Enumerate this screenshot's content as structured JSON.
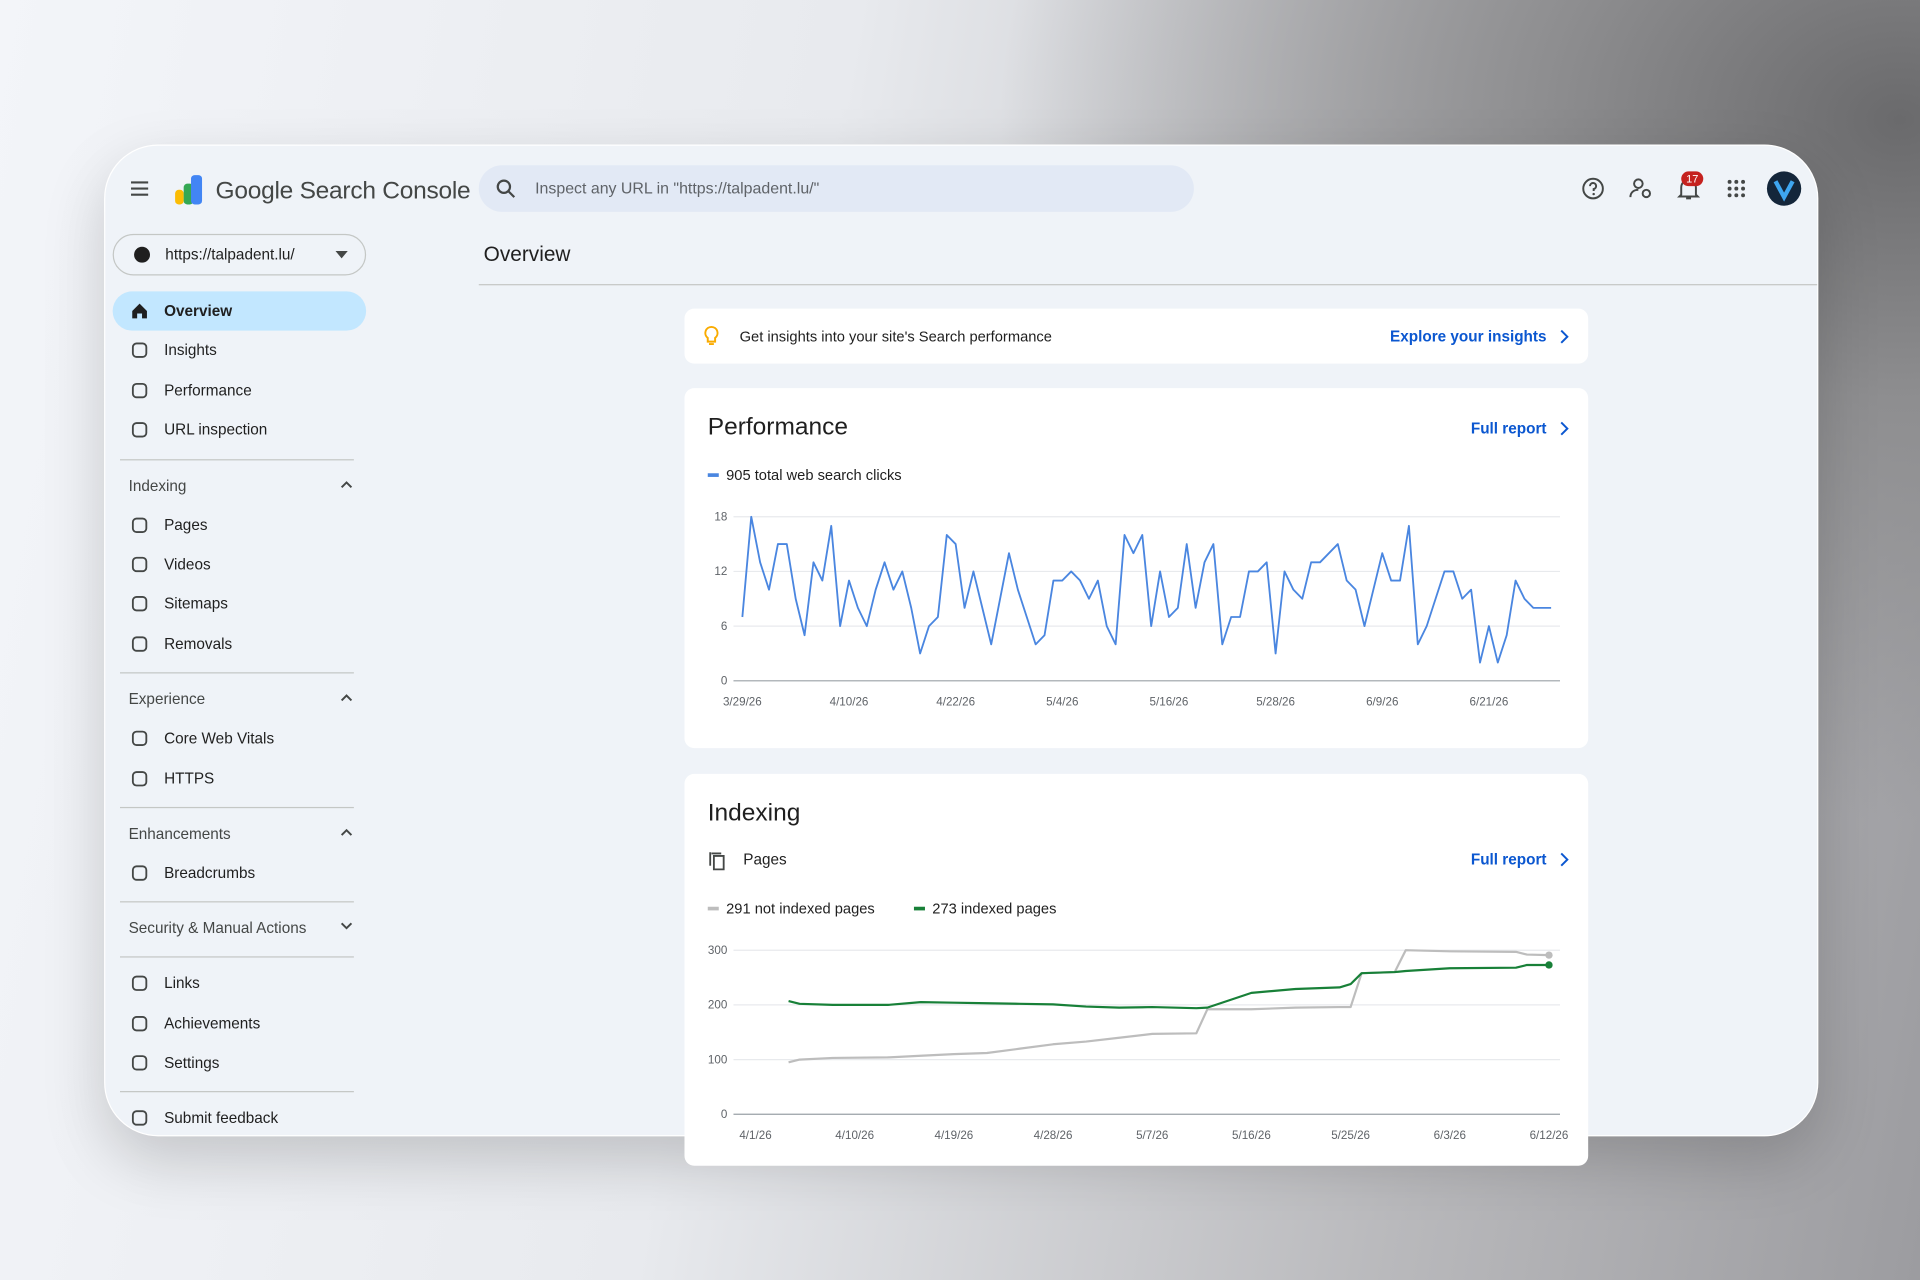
{
  "header": {
    "product": "Google Search Console",
    "search_placeholder": "Inspect any URL in \"https://talpadent.lu/\"",
    "notification_count": 17
  },
  "sidebar": {
    "property": "https://talpadent.lu/",
    "top_items": [
      "Overview",
      "Insights",
      "Performance",
      "URL inspection"
    ],
    "sections": [
      {
        "title": "Indexing",
        "items": [
          "Pages",
          "Videos",
          "Sitemaps",
          "Removals"
        ]
      },
      {
        "title": "Experience",
        "items": [
          "Core Web Vitals",
          "HTTPS"
        ]
      },
      {
        "title": "Enhancements",
        "items": [
          "Breadcrumbs"
        ]
      },
      {
        "title": "Security & Manual Actions"
      }
    ],
    "bottom_items": [
      "Links",
      "Achievements",
      "Settings"
    ],
    "feedback": "Submit feedback"
  },
  "main": {
    "title": "Overview",
    "insight": {
      "text": "Get insights into your site's Search performance",
      "link": "Explore your insights"
    },
    "performance": {
      "title": "Performance",
      "link": "Full report"
    },
    "indexing": {
      "title": "Indexing",
      "subtitle": "Pages",
      "link": "Full report"
    }
  },
  "chart_data": [
    {
      "type": "line",
      "x": [
        "3/29/26",
        "3/30/26",
        "3/31/26",
        "4/1/26",
        "4/2/26",
        "4/3/26",
        "4/4/26",
        "4/5/26",
        "4/6/26",
        "4/7/26",
        "4/8/26",
        "4/9/26",
        "4/10/26",
        "4/11/26",
        "4/12/26",
        "4/13/26",
        "4/14/26",
        "4/15/26",
        "4/16/26",
        "4/17/26",
        "4/18/26",
        "4/19/26",
        "4/20/26",
        "4/21/26",
        "4/22/26",
        "4/23/26",
        "4/24/26",
        "4/25/26",
        "4/26/26",
        "4/27/26",
        "4/28/26",
        "4/29/26",
        "4/30/26",
        "5/1/26",
        "5/2/26",
        "5/3/26",
        "5/4/26",
        "5/5/26",
        "5/6/26",
        "5/7/26",
        "5/8/26",
        "5/9/26",
        "5/10/26",
        "5/11/26",
        "5/12/26",
        "5/13/26",
        "5/14/26",
        "5/15/26",
        "5/16/26",
        "5/17/26",
        "5/18/26",
        "5/19/26",
        "5/20/26",
        "5/21/26",
        "5/22/26",
        "5/23/26",
        "5/24/26",
        "5/25/26",
        "5/26/26",
        "5/27/26",
        "5/28/26",
        "5/29/26",
        "5/30/26",
        "5/31/26",
        "6/1/26",
        "6/2/26",
        "6/3/26",
        "6/4/26",
        "6/5/26",
        "6/6/26",
        "6/7/26",
        "6/8/26",
        "6/9/26",
        "6/10/26",
        "6/11/26",
        "6/12/26",
        "6/13/26",
        "6/14/26",
        "6/15/26",
        "6/16/26",
        "6/17/26",
        "6/18/26",
        "6/19/26",
        "6/20/26",
        "6/21/26",
        "6/22/26",
        "6/23/26",
        "6/24/26",
        "6/25/26",
        "6/26/26",
        "6/27/26",
        "6/28/26"
      ],
      "series": [
        {
          "name": "905 total web search clicks",
          "color": "#4a86e0",
          "values": [
            7,
            18,
            13,
            10,
            15,
            15,
            9,
            5,
            13,
            11,
            17,
            6,
            11,
            8,
            6,
            10,
            13,
            10,
            12,
            8,
            3,
            6,
            7,
            16,
            15,
            8,
            12,
            8,
            4,
            9,
            14,
            10,
            7,
            4,
            5,
            11,
            11,
            12,
            11,
            9,
            11,
            6,
            4,
            16,
            14,
            16,
            6,
            12,
            7,
            8,
            15,
            8,
            13,
            15,
            4,
            7,
            7,
            12,
            12,
            13,
            3,
            12,
            10,
            9,
            13,
            13,
            14,
            15,
            11,
            10,
            6,
            10,
            14,
            11,
            11,
            17,
            4,
            6,
            9,
            12,
            12,
            9,
            10,
            2,
            6,
            2,
            5,
            11,
            9,
            8,
            8,
            8
          ]
        }
      ],
      "xlim": [
        "3/28/26",
        "6/29/26"
      ],
      "xticks": [
        "3/29/26",
        "4/10/26",
        "4/22/26",
        "5/4/26",
        "5/16/26",
        "5/28/26",
        "6/9/26",
        "6/21/26"
      ],
      "ylim": [
        0,
        18
      ],
      "yticks": [
        0,
        6,
        12,
        18
      ],
      "grid": true
    },
    {
      "type": "line",
      "x": [
        "4/4/26",
        "4/5/26",
        "4/8/26",
        "4/13/26",
        "4/16/26",
        "4/19/26",
        "4/22/26",
        "4/25/26",
        "4/28/26",
        "5/1/26",
        "5/4/26",
        "5/7/26",
        "5/11/26",
        "5/12/26",
        "5/16/26",
        "5/20/26",
        "5/24/26",
        "5/25/26",
        "5/26/26",
        "5/29/26",
        "5/30/26",
        "6/3/26",
        "6/9/26",
        "6/10/26",
        "6/12/26"
      ],
      "series": [
        {
          "name": "291 not indexed pages",
          "color": "#bdbdbd",
          "values": [
            95,
            100,
            103,
            104,
            107,
            110,
            112,
            120,
            128,
            133,
            140,
            147,
            148,
            192,
            192,
            195,
            196,
            196,
            258,
            260,
            300,
            298,
            297,
            292,
            291
          ]
        },
        {
          "name": "273 indexed pages",
          "color": "#188038",
          "values": [
            207,
            202,
            200,
            200,
            205,
            204,
            203,
            202,
            201,
            197,
            195,
            196,
            194,
            195,
            222,
            229,
            232,
            238,
            258,
            260,
            262,
            267,
            268,
            273,
            273
          ]
        }
      ],
      "xlim": [
        "3/30/26",
        "6/13/26"
      ],
      "xticks": [
        "4/1/26",
        "4/10/26",
        "4/19/26",
        "4/28/26",
        "5/7/26",
        "5/16/26",
        "5/25/26",
        "6/3/26",
        "6/12/26"
      ],
      "ylim": [
        0,
        300
      ],
      "yticks": [
        0,
        100,
        200,
        300
      ],
      "grid": true
    }
  ]
}
